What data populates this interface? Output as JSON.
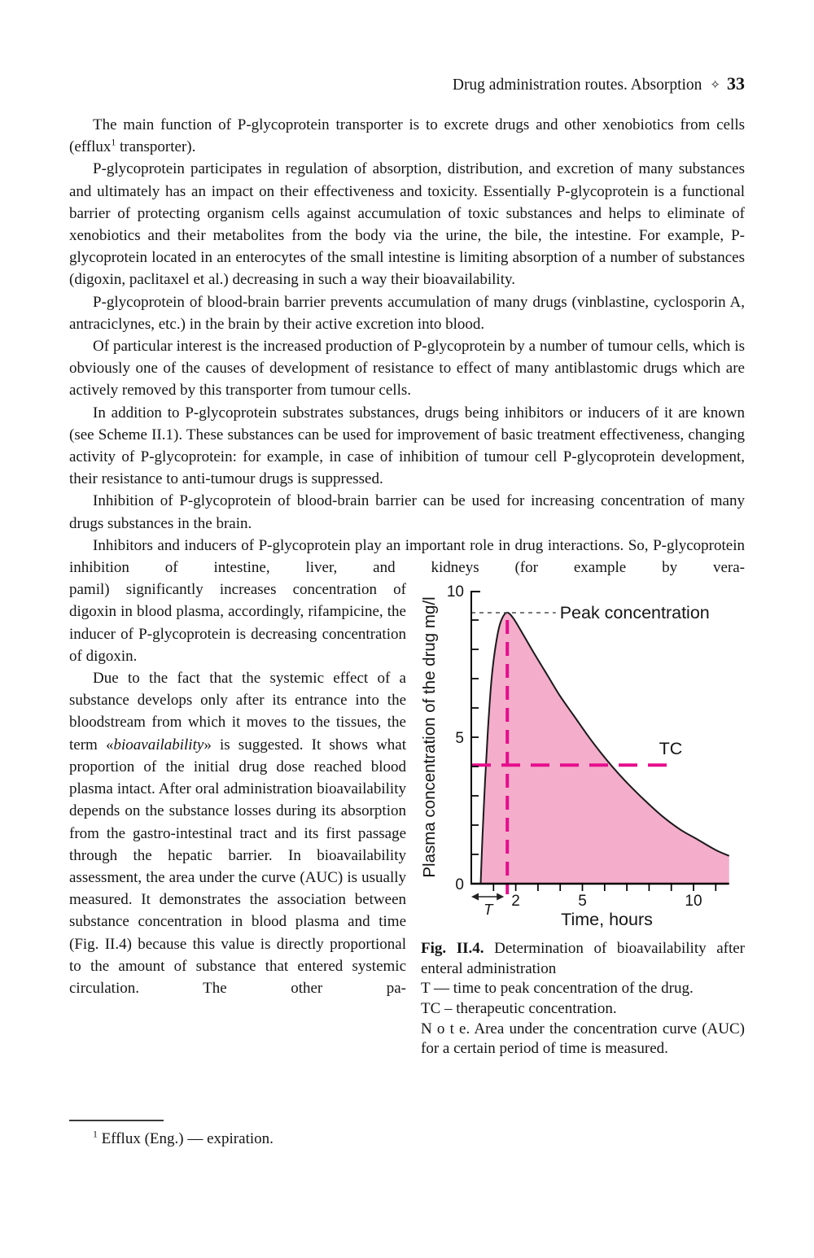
{
  "header": {
    "title": "Drug administration routes. Absorption",
    "separator": "✧",
    "page_number": "33"
  },
  "paragraphs": {
    "p1_a": "The main function of P-glycoprotein transporter is to excrete drugs and other xenobiotics from cells (efflux",
    "p1_sup": "1",
    "p1_b": " transporter).",
    "p2": "P-glycoprotein participates in regulation of absorption, distribution, and excretion of many substances and ultimately has an impact on their effectiveness and toxicity. Essentially P-glycoprotein is a functional barrier of protecting organism cells against accumulation of toxic substances and helps to eliminate of xenobiotics and their metabolites from the body via the urine, the bile, the intestine. For example, P-glycoprotein located in an enterocytes of the small intestine is limiting absorption of a number of substances (digoxin, paclitaxel et al.) decreasing in such a way their bioavailability.",
    "p3": "P-glycoprotein of blood-brain barrier prevents accumulation of many drugs (vinblastine, cyclosporin A, antraciclynes, etc.) in the brain by their active excretion into blood.",
    "p4": "Of particular interest is the increased production of P-glycoprotein by a number of tumour cells, which is obviously one of the causes of development of resistance to effect of many antiblastomic drugs which are actively removed by this transporter from tumour cells.",
    "p5": "In addition to P-glycoprotein substrates substances, drugs being inhibitors or inducers of it are known (see Scheme II.1). These substances can be used for improvement of basic treatment effectiveness, changing activity of P-glycoprotein: for example, in case of inhibition of tumour cell P-glycoprotein development, their resistance to anti-tumour drugs is suppressed.",
    "p6": "Inhibition of P-glycoprotein of blood-brain barrier can be used for increasing concentration of many drugs substances in the brain.",
    "p7_a": "Inhibitors and inducers of P-glycoprotein play an important role in drug interactions. So, P-glycoprotein inhibition of intestine, liver, and kidneys (for example by vera-",
    "p7_b": "pamil) significantly increases concentration of digoxin in blood plasma, accordingly, rifampicine, the inducer of P-glycoprotein is decreasing concentration of digoxin.",
    "p8_a": "Due to the fact that the systemic effect of a substance develops only after its entrance into the bloodstream from which it moves to the tissues, the term «",
    "p8_italic": "bioavailability",
    "p8_b": "» is suggested. It shows what proportion of the initial drug dose reached blood plasma intact. After oral administration bioavailability depends on the substance losses during its absorption from the gastro-intestinal tract and its first passage through the hepatic barrier. In bioavailability assessment, the area under the curve (AUC) is usually measured. It demonstrates the association between substance concentration in blood plasma and time (Fig. II.4) because this value is directly proportional to the amount of substance that entered systemic circulation. The other pa-"
  },
  "figure": {
    "caption_label": "Fig. II.4.",
    "caption_text": "Determination of bioavailability after enteral administration",
    "caption_line_t": "T — time to peak concentration of the drug.",
    "caption_line_tc": "TC – therapeutic concentration.",
    "caption_note": "N o t e. Area under the concentration curve (AUC) for a certain period of time is measured."
  },
  "footnote": {
    "sup": "1",
    "text": " Efflux (Eng.) — expiration."
  },
  "chart_data": {
    "type": "area",
    "title": "",
    "xlabel": "Time, hours",
    "ylabel": "Plasma concentration of the drug mg/l",
    "xlim": [
      0,
      11.6
    ],
    "ylim": [
      0,
      10
    ],
    "x_ticks_labeled": [
      2,
      5,
      10
    ],
    "y_ticks_labeled": [
      0,
      5,
      10
    ],
    "minor_tick_step": 1,
    "grid": false,
    "curve": [
      [
        0.42,
        0
      ],
      [
        0.5,
        1.6
      ],
      [
        0.62,
        3.5
      ],
      [
        0.75,
        5.3
      ],
      [
        0.9,
        6.9
      ],
      [
        1.05,
        7.9
      ],
      [
        1.25,
        8.75
      ],
      [
        1.45,
        9.15
      ],
      [
        1.65,
        9.25
      ],
      [
        1.9,
        9.05
      ],
      [
        2.3,
        8.55
      ],
      [
        2.8,
        7.9
      ],
      [
        3.4,
        7.15
      ],
      [
        4.0,
        6.4
      ],
      [
        4.6,
        5.75
      ],
      [
        5.2,
        5.1
      ],
      [
        5.8,
        4.5
      ],
      [
        6.4,
        3.95
      ],
      [
        7.0,
        3.45
      ],
      [
        7.8,
        2.85
      ],
      [
        8.6,
        2.3
      ],
      [
        9.4,
        1.85
      ],
      [
        10.2,
        1.5
      ],
      [
        11.0,
        1.15
      ],
      [
        11.6,
        0.95
      ]
    ],
    "peak": {
      "label": "Peak concentration",
      "time": 1.62,
      "concentration": 9.25,
      "line_x_end": 3.8
    },
    "tc": {
      "label": "TC",
      "value": 4.05,
      "x_end": 8.9
    },
    "t_arrow_label": "T",
    "fill_color": "#F4ADCB",
    "line_color": "#1a1a1a",
    "accent_color": "#E60D8C",
    "dash_color": "#4d4d4d"
  }
}
